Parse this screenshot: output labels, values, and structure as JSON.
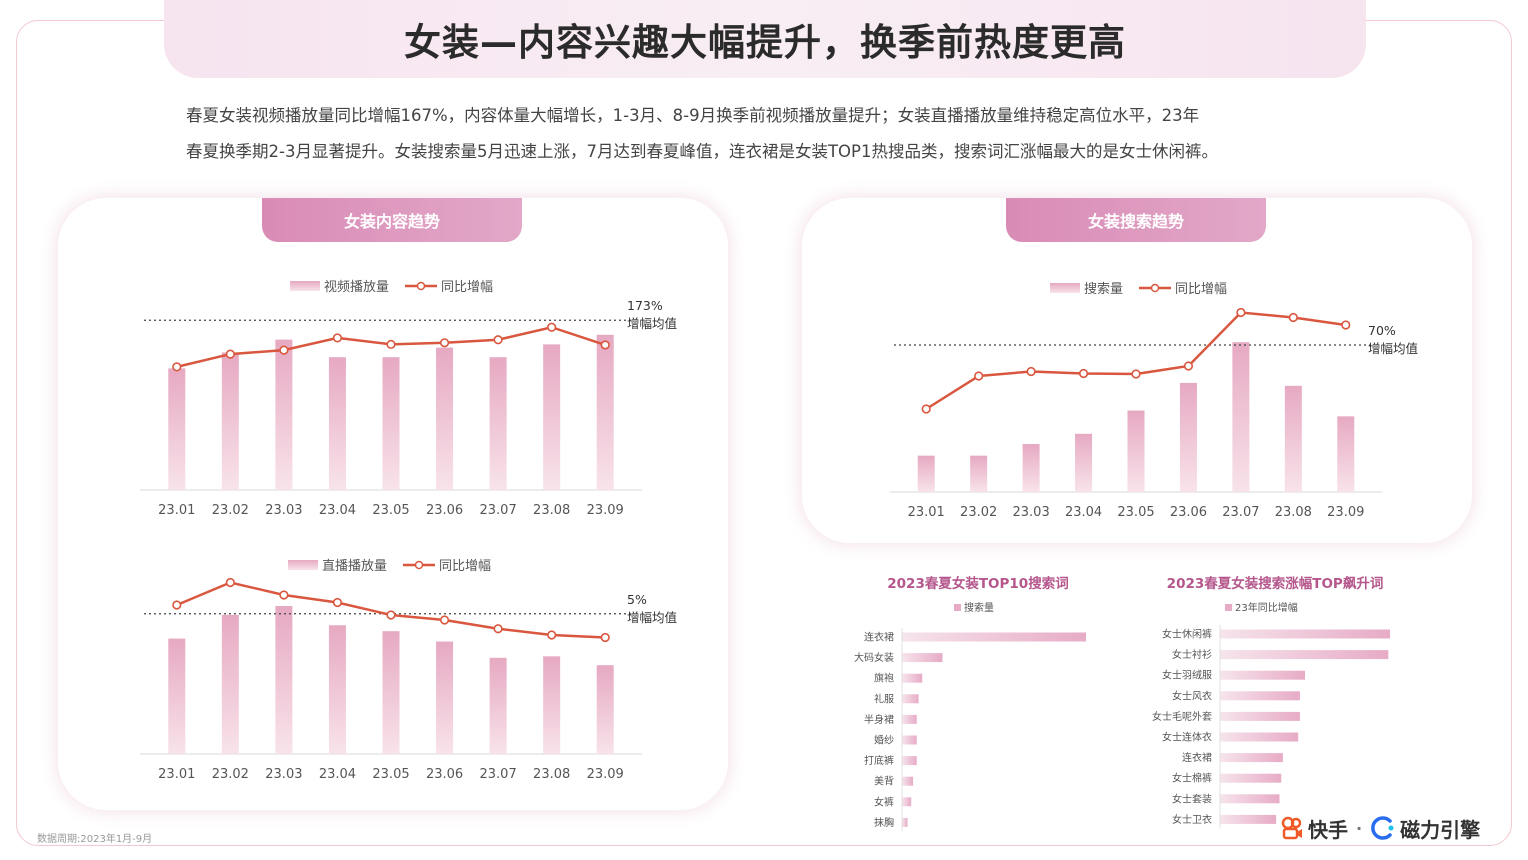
{
  "header": {
    "title": "女装—内容兴趣大幅提升，换季前热度更高",
    "desc_line1": "春夏女装视频播放量同比增幅167%，内容体量大幅增长，1-3月、8-9月换季前视频播放量提升；女装直播播放量维持稳定高位水平，23年",
    "desc_line2": "春夏换季期2-3月显著提升。女装搜索量5月迅速上涨，7月达到春夏峰值，连衣裙是女装TOP1热搜品类，搜索词汇涨幅最大的是女士休闲裤。"
  },
  "colors": {
    "bar": "#eab3c8",
    "line": "#d9573f",
    "accent": "#b5578c",
    "tab": "#dc94bb"
  },
  "left_panel": {
    "tab": "女装内容趋势"
  },
  "right_panel": {
    "tab": "女装搜索趋势"
  },
  "footer": {
    "note": "数据周期:2023年1月-9月",
    "brand_kuaishou": "快手",
    "brand_separator": "·",
    "brand_cili": "磁力引擎"
  },
  "chart_data": [
    {
      "id": "video",
      "type": "bar",
      "categories": [
        "23.01",
        "23.02",
        "23.03",
        "23.04",
        "23.05",
        "23.06",
        "23.07",
        "23.08",
        "23.09"
      ],
      "series": [
        {
          "name": "视频播放量",
          "type": "bar",
          "values": [
            76,
            86,
            94,
            83,
            83,
            89,
            83,
            91,
            97
          ]
        },
        {
          "name": "同比增幅",
          "type": "line",
          "values": [
            20,
            62,
            75,
            115,
            94,
            99,
            109,
            150,
            92
          ]
        }
      ],
      "avg_line": {
        "value": 173,
        "display": "173%",
        "label": "增幅均值"
      },
      "bar_max": 100
    },
    {
      "id": "live",
      "type": "bar",
      "categories": [
        "23.01",
        "23.02",
        "23.03",
        "23.04",
        "23.05",
        "23.06",
        "23.07",
        "23.08",
        "23.09"
      ],
      "series": [
        {
          "name": "直播播放量",
          "type": "bar",
          "values": [
            78,
            94,
            100,
            87,
            83,
            76,
            65,
            66,
            60
          ]
        },
        {
          "name": "同比增幅",
          "type": "line",
          "values": [
            12,
            30,
            20,
            14,
            4,
            0,
            -7,
            -12,
            -14
          ]
        }
      ],
      "avg_line": {
        "value": 5,
        "display": "5%",
        "label": "增幅均值"
      },
      "bar_max": 100
    },
    {
      "id": "search",
      "type": "bar",
      "categories": [
        "23.01",
        "23.02",
        "23.03",
        "23.04",
        "23.05",
        "23.06",
        "23.07",
        "23.08",
        "23.09"
      ],
      "series": [
        {
          "name": "搜索量",
          "type": "bar",
          "values": [
            25,
            25,
            33,
            40,
            56,
            75,
            103,
            73,
            52
          ]
        },
        {
          "name": "同比增幅",
          "type": "line",
          "values": [
            -58,
            8,
            17,
            13,
            12,
            28,
            135,
            125,
            110
          ]
        }
      ],
      "avg_line": {
        "value": 70,
        "display": "70%",
        "label": "增幅均值"
      },
      "bar_max": 110
    },
    {
      "id": "top10",
      "type": "bar",
      "orientation": "horizontal",
      "title": "2023春夏女装TOP10搜索词",
      "legend": "搜索量",
      "categories": [
        "连衣裙",
        "大码女装",
        "旗袍",
        "礼服",
        "半身裙",
        "婚纱",
        "打底裤",
        "美背",
        "女裤",
        "抹胸"
      ],
      "values": [
        100,
        22,
        11,
        9,
        8,
        8,
        8,
        6,
        5,
        3
      ]
    },
    {
      "id": "rising",
      "type": "bar",
      "orientation": "horizontal",
      "title": "2023春夏女装搜索涨幅TOP飙升词",
      "legend": "23年同比增幅",
      "categories": [
        "女士休闲裤",
        "女士衬衫",
        "女士羽绒服",
        "女士风衣",
        "女士毛呢外套",
        "女士连体衣",
        "连衣裙",
        "女士棉裤",
        "女士套装",
        "女士卫衣"
      ],
      "values": [
        100,
        99,
        50,
        47,
        47,
        46,
        37,
        36,
        35,
        33
      ]
    }
  ]
}
